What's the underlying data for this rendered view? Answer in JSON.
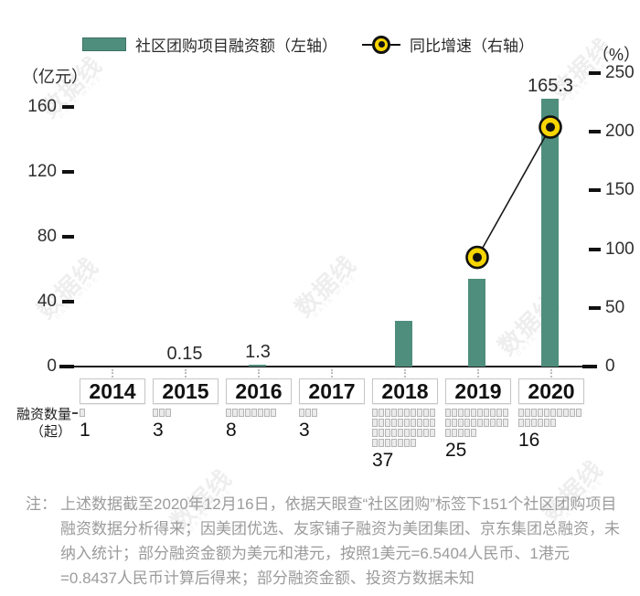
{
  "legend": [
    {
      "label": "社区团购项目融资额（左轴）",
      "marker": "bar-swatch",
      "color": "#4f8e7d"
    },
    {
      "label": "同比增速（右轴）",
      "marker": "line-dot",
      "color": "#f7d500"
    }
  ],
  "axes": {
    "left_unit": "（亿元）",
    "right_unit": "（%）"
  },
  "chart_data": {
    "type": "bar",
    "categories": [
      "2014",
      "2015",
      "2016",
      "2017",
      "2018",
      "2019",
      "2020"
    ],
    "series": [
      {
        "name": "社区团购项目融资额（左轴）",
        "type": "bar",
        "axis": "left",
        "unit": "亿元",
        "values": [
          null,
          0.15,
          1.3,
          null,
          28,
          54,
          165.3
        ],
        "labels": [
          "",
          "0.15",
          "1.3",
          "",
          "",
          "",
          "165.3"
        ]
      },
      {
        "name": "同比增速（右轴）",
        "type": "line",
        "axis": "right",
        "unit": "%",
        "values": [
          null,
          null,
          null,
          null,
          null,
          93,
          204
        ]
      }
    ],
    "left_axis": {
      "unit": "亿元",
      "ticks": [
        0,
        40,
        80,
        120,
        160
      ],
      "range": [
        0,
        175
      ]
    },
    "right_axis": {
      "unit": "%",
      "ticks": [
        0,
        50,
        100,
        150,
        200,
        250
      ],
      "range": [
        0,
        260
      ]
    },
    "financing_counts": {
      "label_line1": "融资数量",
      "label_line2": "（起）",
      "values": [
        1,
        3,
        8,
        3,
        37,
        25,
        16
      ]
    },
    "legend_position": "top",
    "grid": false
  },
  "note": {
    "prefix": "注：",
    "text": "上述数据截至2020年12月16日，依据天眼查“社区团购”标签下151个社区团购项目融资数据分析得来；因美团优选、友家铺子融资为美团集团、京东集团总融资，未纳入统计；部分融资金额为美元和港元，按照1美元=6.5404人民币、1港元=0.8437人民币计算后得来；部分融资金额、投资方数据未知"
  },
  "watermark": {
    "text": "数据线",
    "subtext": "DATA WIRE"
  },
  "colors": {
    "bar": "#4f8e7d",
    "dot_fill": "#f7d500",
    "dot_stroke": "#111111",
    "line": "#1a1a1a",
    "square_fill": "#ebebeb",
    "square_border": "#b5b5b5",
    "note_text": "#9b9b9b"
  }
}
